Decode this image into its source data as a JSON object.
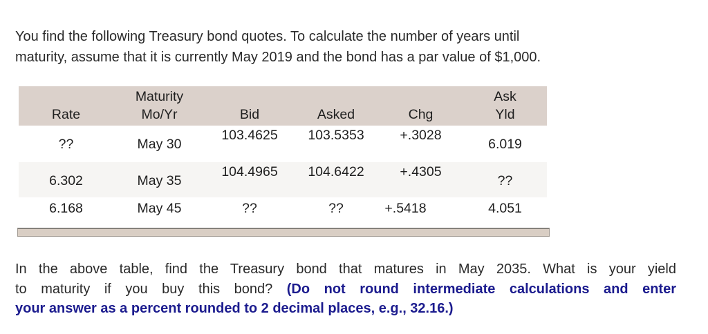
{
  "intro": {
    "line1": "You find the following Treasury bond quotes. To calculate the number of years until",
    "line2": "maturity, assume that it is currently May 2019 and the bond has a par value of $1,000."
  },
  "table": {
    "headers": {
      "rate": "Rate",
      "maturity_line1": "Maturity",
      "maturity_line2": "Mo/Yr",
      "bid": "Bid",
      "asked": "Asked",
      "chg": "Chg",
      "ask_yld_line1": "Ask",
      "ask_yld_line2": "Yld"
    },
    "rows": [
      {
        "rate": "??",
        "maturity": "May 30",
        "bid": "103.4625",
        "asked": "103.5353",
        "chg": "+.3028",
        "ask_yld": "6.019"
      },
      {
        "rate": "6.302",
        "maturity": "May 35",
        "bid": "104.4965",
        "asked": "104.6422",
        "chg": "+.4305",
        "ask_yld": "??"
      },
      {
        "rate": "6.168",
        "maturity": "May 45",
        "bid": "??",
        "asked": "??",
        "chg": "+.5418",
        "ask_yld": "4.051"
      }
    ]
  },
  "question": {
    "line1": "In the above table, find the Treasury bond that matures in May 2035. What is your yield",
    "line2_plain": "to maturity if you buy this bond? ",
    "line2_bold": "(Do not round intermediate calculations and enter",
    "line3_bold": "your answer as a percent rounded to 2 decimal places, e.g., 32.16.)"
  },
  "colors": {
    "header_bg": "#dbd1cb",
    "alt_row_bg": "#f6f5f3",
    "scrollbar_fill": "#d9cec4",
    "scrollbar_border": "#85817b",
    "text": "#2a2a2a",
    "accent_blue": "#1b1b8e"
  }
}
